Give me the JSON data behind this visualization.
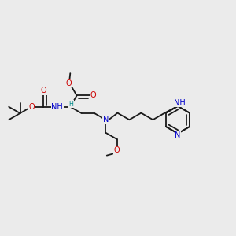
{
  "bg": "#ebebeb",
  "bc": "#1a1a1a",
  "Nc": "#0000cc",
  "Oc": "#cc0000",
  "Hc": "#008888",
  "bw": 1.3,
  "fs": 7.0,
  "dbo": 0.013,
  "figsize": [
    3.0,
    3.0
  ],
  "dpi": 100,
  "xlim": [
    0,
    1
  ],
  "ylim": [
    0,
    1
  ]
}
